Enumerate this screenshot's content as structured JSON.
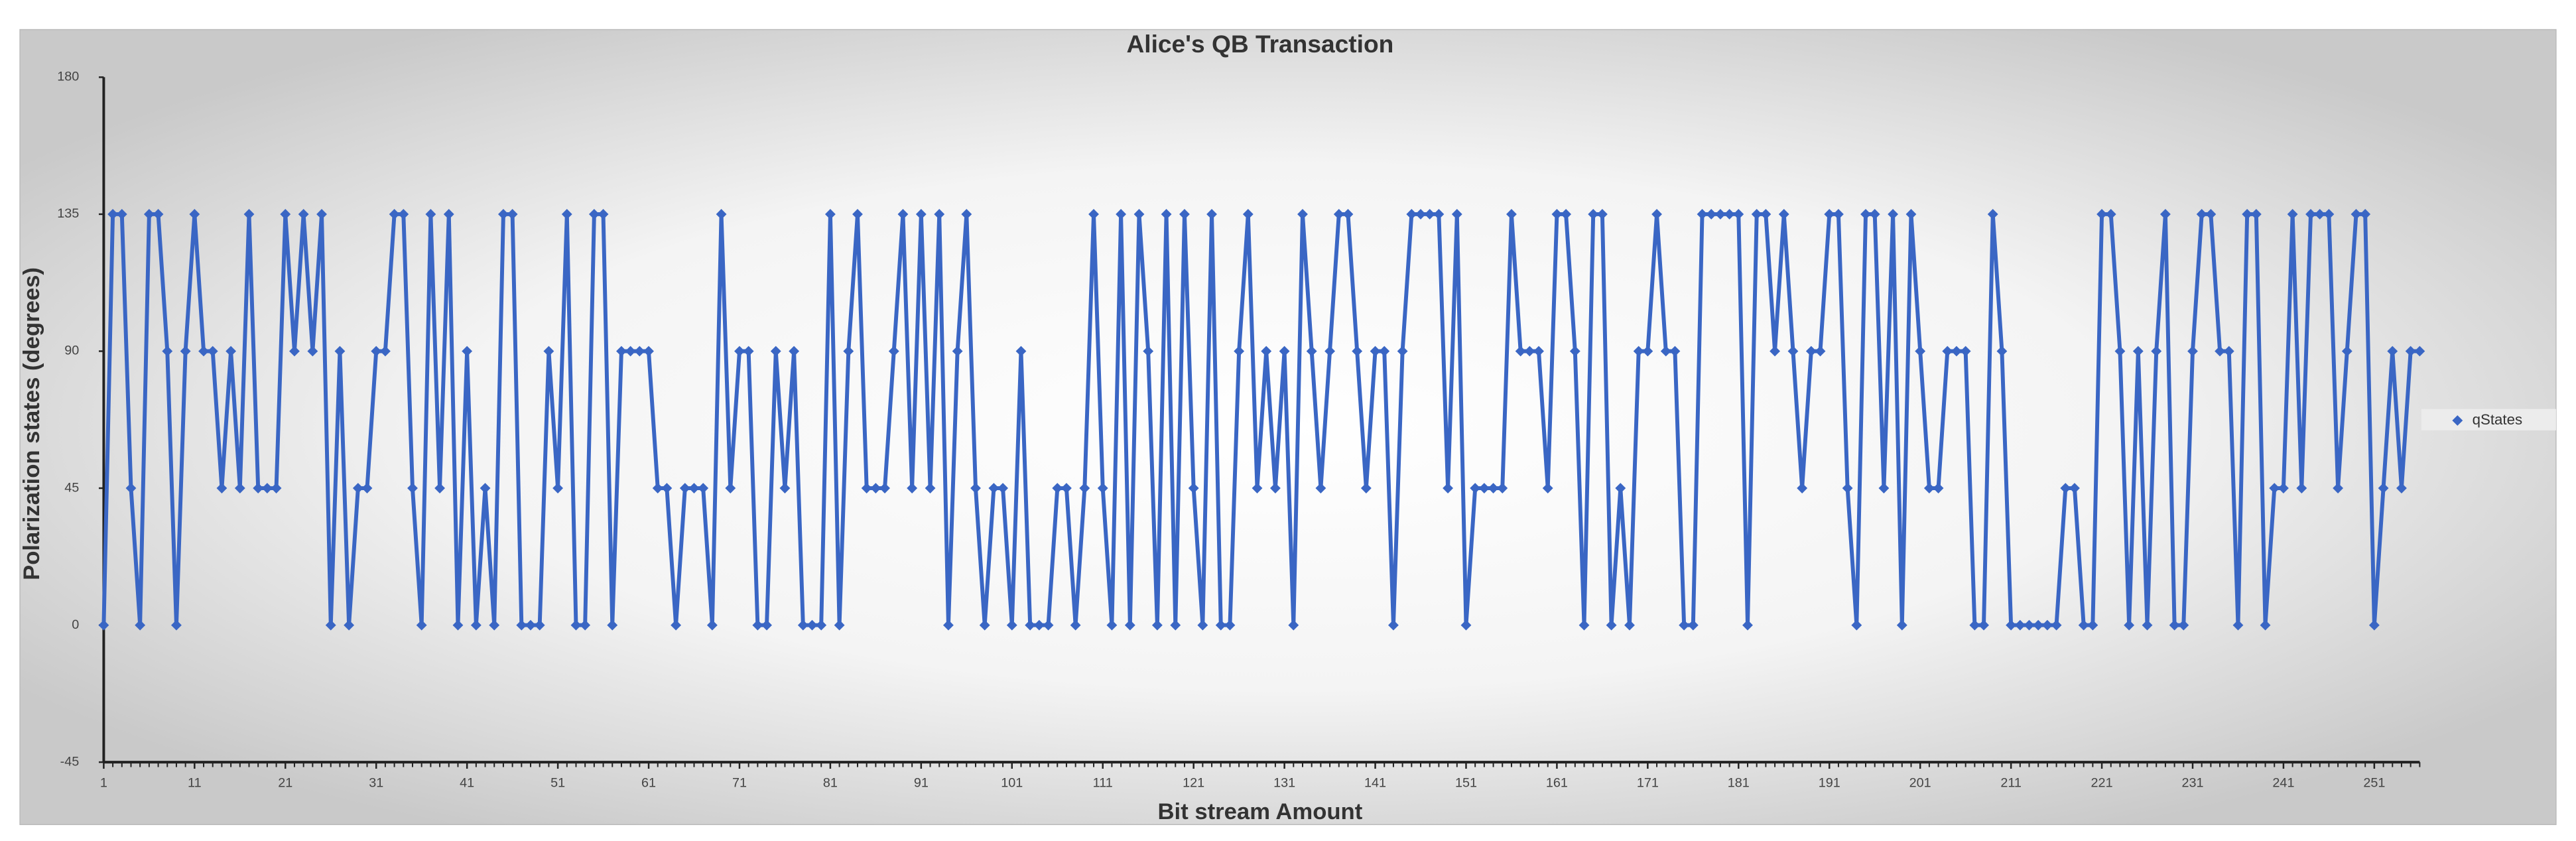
{
  "chart_data": {
    "type": "line",
    "title": "Alice's QB Transaction",
    "x_label": "Bit stream Amount",
    "y_label": "Polarization states (degrees)",
    "x": [
      1,
      2,
      3,
      4,
      5,
      6,
      7,
      8,
      9,
      10,
      11,
      12,
      13,
      14,
      15,
      16,
      17,
      18,
      19,
      20,
      21,
      22,
      23,
      24,
      25,
      26,
      27,
      28,
      29,
      30,
      31,
      32,
      33,
      34,
      35,
      36,
      37,
      38,
      39,
      40,
      41,
      42,
      43,
      44,
      45,
      46,
      47,
      48,
      49,
      50,
      51,
      52,
      53,
      54,
      55,
      56,
      57,
      58,
      59,
      60,
      61,
      62,
      63,
      64,
      65,
      66,
      67,
      68,
      69,
      70,
      71,
      72,
      73,
      74,
      75,
      76,
      77,
      78,
      79,
      80,
      81,
      82,
      83,
      84,
      85,
      86,
      87,
      88,
      89,
      90,
      91,
      92,
      93,
      94,
      95,
      96,
      97,
      98,
      99,
      100,
      101,
      102,
      103,
      104,
      105,
      106,
      107,
      108,
      109,
      110,
      111,
      112,
      113,
      114,
      115,
      116,
      117,
      118,
      119,
      120,
      121,
      122,
      123,
      124,
      125,
      126,
      127,
      128,
      129,
      130,
      131,
      132,
      133,
      134,
      135,
      136,
      137,
      138,
      139,
      140,
      141,
      142,
      143,
      144,
      145,
      146,
      147,
      148,
      149,
      150,
      151,
      152,
      153,
      154,
      155,
      156,
      157,
      158,
      159,
      160,
      161,
      162,
      163,
      164,
      165,
      166,
      167,
      168,
      169,
      170,
      171,
      172,
      173,
      174,
      175,
      176,
      177,
      178,
      179,
      180,
      181,
      182,
      183,
      184,
      185,
      186,
      187,
      188,
      189,
      190,
      191,
      192,
      193,
      194,
      195,
      196,
      197,
      198,
      199,
      200,
      201,
      202,
      203,
      204,
      205,
      206,
      207,
      208,
      209,
      210,
      211,
      212,
      213,
      214,
      215,
      216,
      217,
      218,
      219,
      220,
      221,
      222,
      223,
      224,
      225,
      226,
      227,
      228,
      229,
      230,
      231,
      232,
      233,
      234,
      235,
      236,
      237,
      238,
      239,
      240,
      241,
      242,
      243,
      244,
      245,
      246,
      247,
      248,
      249,
      250,
      251,
      252,
      253,
      254,
      255,
      256
    ],
    "series": [
      {
        "name": "qStates",
        "color": "#3a66c4",
        "values": [
          0,
          135,
          135,
          45,
          0,
          135,
          135,
          90,
          0,
          90,
          135,
          90,
          90,
          45,
          90,
          45,
          135,
          45,
          45,
          45,
          135,
          90,
          135,
          90,
          135,
          0,
          90,
          0,
          45,
          45,
          90,
          90,
          135,
          135,
          45,
          0,
          135,
          45,
          135,
          0,
          90,
          0,
          45,
          0,
          135,
          135,
          0,
          0,
          0,
          90,
          45,
          135,
          0,
          0,
          135,
          135,
          0,
          90,
          90,
          90,
          90,
          45,
          45,
          0,
          45,
          45,
          45,
          0,
          135,
          45,
          90,
          90,
          0,
          0,
          90,
          45,
          90,
          0,
          0,
          0,
          135,
          0,
          90,
          135,
          45,
          45,
          45,
          90,
          135,
          45,
          135,
          45,
          135,
          0,
          90,
          135,
          45,
          0,
          45,
          45,
          0,
          90,
          0,
          0,
          0,
          45,
          45,
          0,
          45,
          135,
          45,
          0,
          135,
          0,
          135,
          90,
          0,
          135,
          0,
          135,
          45,
          0,
          135,
          0,
          0,
          90,
          135,
          45,
          90,
          45,
          90,
          0,
          135,
          90,
          45,
          90,
          135,
          135,
          90,
          45,
          90,
          90,
          0,
          90,
          135,
          135,
          135,
          135,
          45,
          135,
          0,
          45,
          45,
          45,
          45,
          135,
          90,
          90,
          90,
          45,
          135,
          135,
          90,
          0,
          135,
          135,
          0,
          45,
          0,
          90,
          90,
          135,
          90,
          90,
          0,
          0,
          135,
          135,
          135,
          135,
          135,
          0,
          135,
          135,
          90,
          135,
          90,
          45,
          90,
          90,
          135,
          135,
          45,
          0,
          135,
          135,
          45,
          135,
          0,
          135,
          90,
          45,
          45,
          90,
          90,
          90,
          0,
          0,
          135,
          90,
          0,
          0,
          0,
          0,
          0,
          0,
          45,
          45,
          0,
          0,
          135,
          135,
          90,
          0,
          90,
          0,
          90,
          135,
          0,
          0,
          90,
          135,
          135,
          90,
          90,
          0,
          135,
          135,
          0,
          45,
          45,
          135,
          45,
          135,
          135,
          135,
          45,
          90,
          135,
          135,
          0,
          45,
          90,
          45,
          90,
          90
        ]
      }
    ],
    "xlim": [
      1,
      256
    ],
    "xticks": [
      1,
      11,
      21,
      31,
      41,
      51,
      61,
      71,
      81,
      91,
      101,
      111,
      121,
      131,
      141,
      151,
      161,
      171,
      181,
      191,
      201,
      211,
      221,
      231,
      241,
      251
    ],
    "ylim": [
      -45,
      180
    ],
    "yticks": [
      -45,
      0,
      45,
      90,
      135,
      180
    ],
    "legend": "right"
  }
}
